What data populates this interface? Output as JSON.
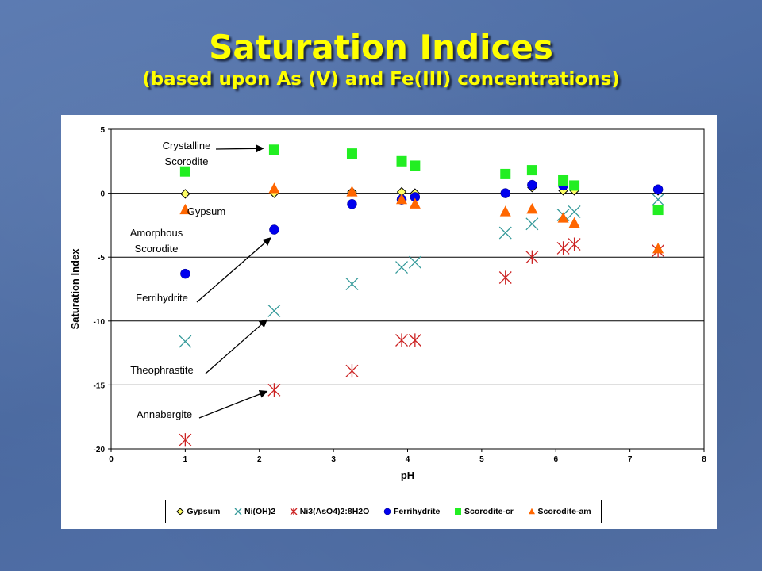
{
  "slide": {
    "title": "Saturation Indices",
    "subtitle": "(based upon As (V) and Fe(III) concentrations)"
  },
  "chart_data": {
    "type": "scatter",
    "title": "",
    "xlabel": "pH",
    "ylabel": "Saturation Index",
    "xlim": [
      0,
      8
    ],
    "ylim": [
      -20,
      5
    ],
    "x_ticks": [
      "0",
      "1",
      "2",
      "3",
      "4",
      "5",
      "6",
      "7",
      "8"
    ],
    "y_ticks": [
      "5",
      "0",
      "-5",
      "-10",
      "-15",
      "-20"
    ],
    "gridlines": "horizontal",
    "legend_position": "bottom",
    "series": [
      {
        "name": "Gypsum",
        "marker": "diamond",
        "color": "#ffff66",
        "stroke": "#000000",
        "points": [
          [
            1.0,
            -0.05
          ],
          [
            2.2,
            0.0
          ],
          [
            3.25,
            0.1
          ],
          [
            3.92,
            0.1
          ],
          [
            4.1,
            0.0
          ],
          [
            5.32,
            0.0
          ],
          [
            5.68,
            0.45
          ],
          [
            6.1,
            0.2
          ],
          [
            6.25,
            0.2
          ],
          [
            7.38,
            0.2
          ]
        ]
      },
      {
        "name": "Ni(OH)2",
        "marker": "x",
        "color": "#339999",
        "points": [
          [
            1.0,
            -11.6
          ],
          [
            2.2,
            -9.2
          ],
          [
            3.25,
            -7.1
          ],
          [
            3.92,
            -5.8
          ],
          [
            4.1,
            -5.4
          ],
          [
            5.32,
            -3.1
          ],
          [
            5.68,
            -2.4
          ],
          [
            6.1,
            -1.7
          ],
          [
            6.25,
            -1.45
          ],
          [
            7.38,
            -0.5
          ]
        ]
      },
      {
        "name": "Ni3(AsO4)2:8H2O",
        "marker": "star",
        "color": "#cc2222",
        "points": [
          [
            1.0,
            -19.3
          ],
          [
            2.2,
            -15.4
          ],
          [
            3.25,
            -13.9
          ],
          [
            3.92,
            -11.5
          ],
          [
            4.1,
            -11.5
          ],
          [
            5.32,
            -6.6
          ],
          [
            5.68,
            -5.0
          ],
          [
            6.1,
            -4.3
          ],
          [
            6.25,
            -4.0
          ],
          [
            7.38,
            -4.5
          ]
        ]
      },
      {
        "name": "Ferrihydrite",
        "marker": "circle",
        "color": "#0000ee",
        "points": [
          [
            1.0,
            -6.3
          ],
          [
            2.2,
            -2.85
          ],
          [
            3.25,
            -0.85
          ],
          [
            3.92,
            -0.5
          ],
          [
            4.1,
            -0.3
          ],
          [
            5.32,
            0.0
          ],
          [
            5.68,
            0.65
          ],
          [
            6.1,
            0.6
          ],
          [
            7.38,
            0.3
          ]
        ]
      },
      {
        "name": "Scorodite-cr",
        "marker": "square",
        "color": "#22ee22",
        "points": [
          [
            1.0,
            1.7
          ],
          [
            2.2,
            3.4
          ],
          [
            3.25,
            3.1
          ],
          [
            3.92,
            2.5
          ],
          [
            4.1,
            2.15
          ],
          [
            5.32,
            1.5
          ],
          [
            5.68,
            1.8
          ],
          [
            6.1,
            1.0
          ],
          [
            6.25,
            0.6
          ],
          [
            7.38,
            -1.3
          ]
        ]
      },
      {
        "name": "Scorodite-am",
        "marker": "triangle",
        "color": "#ff6600",
        "points": [
          [
            1.0,
            -1.3
          ],
          [
            2.2,
            0.35
          ],
          [
            3.25,
            0.1
          ],
          [
            3.92,
            -0.5
          ],
          [
            4.1,
            -0.85
          ],
          [
            5.32,
            -1.45
          ],
          [
            5.68,
            -1.25
          ],
          [
            6.1,
            -1.95
          ],
          [
            6.25,
            -2.35
          ],
          [
            7.38,
            -4.35
          ]
        ]
      }
    ],
    "annotations": [
      {
        "label": [
          "Crystalline",
          "Scorodite"
        ],
        "arrow_to": [
          2.05,
          3.5
        ]
      },
      {
        "label": [
          "Gypsum"
        ],
        "arrow_to": null
      },
      {
        "label": [
          "Amorphous",
          "Scorodite"
        ],
        "arrow_to": null
      },
      {
        "label": [
          "Ferrihydrite"
        ],
        "arrow_to": [
          2.15,
          -3.5
        ]
      },
      {
        "label": [
          "Theophrastite"
        ],
        "arrow_to": [
          2.1,
          -9.9
        ]
      },
      {
        "label": [
          "Annabergite"
        ],
        "arrow_to": [
          2.1,
          -15.5
        ]
      }
    ]
  }
}
